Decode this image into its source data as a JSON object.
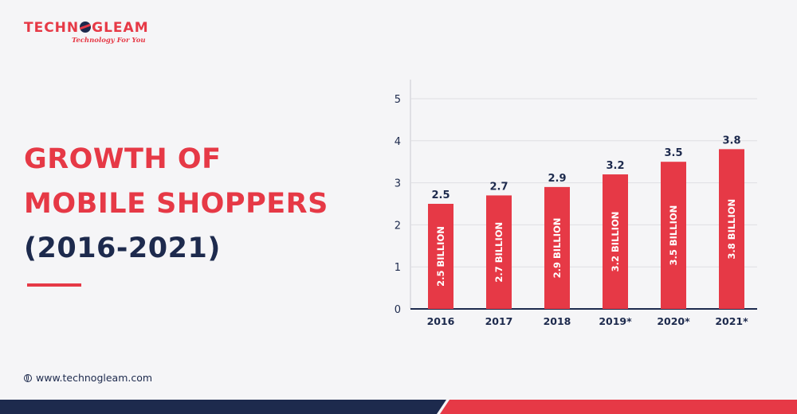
{
  "logo": {
    "part1": "TECHN",
    "part2": "GLEAM",
    "tagline": "Technology For You"
  },
  "heading": {
    "line1": "GROWTH OF",
    "line2": "MOBILE SHOPPERS",
    "line3": "(2016-2021)"
  },
  "footer": {
    "website": "www.technogleam.com",
    "globe_icon": "globe-icon"
  },
  "colors": {
    "accent": "#e63946",
    "navy": "#1d2a4d",
    "background": "#f5f5f7"
  },
  "chart_data": {
    "type": "bar",
    "categories": [
      "2016",
      "2017",
      "2018",
      "2019*",
      "2020*",
      "2021*"
    ],
    "values": [
      2.5,
      2.7,
      2.9,
      3.2,
      3.5,
      3.8
    ],
    "data_labels": [
      "2.5",
      "2.7",
      "2.9",
      "3.2",
      "3.5",
      "3.8"
    ],
    "inner_labels": [
      "2.5 BILLION",
      "2.7 BILLION",
      "2.9 BILLION",
      "3.2 BILLION",
      "3.5 BILLION",
      "3.8 BILLION"
    ],
    "yticks": [
      "0",
      "1",
      "2",
      "3",
      "4",
      "5"
    ],
    "ylim": [
      0,
      5
    ],
    "grid": true,
    "bar_color": "#e63946",
    "title": "",
    "xlabel": "",
    "ylabel": ""
  }
}
